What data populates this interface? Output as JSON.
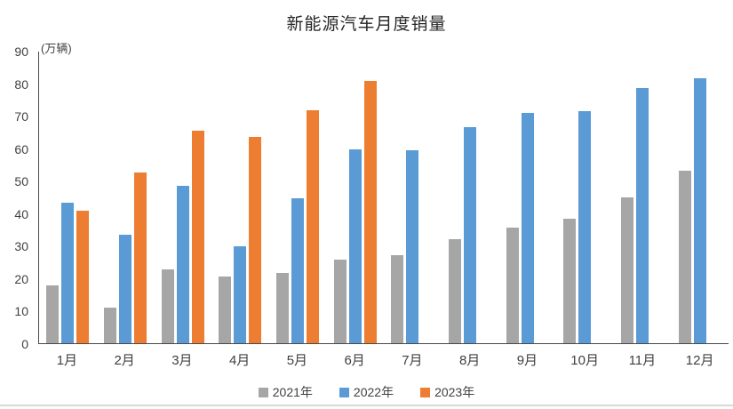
{
  "chart_data": {
    "type": "bar",
    "title": "新能源汽车月度销量",
    "ylabel": "(万辆)",
    "xlabel": "",
    "categories": [
      "1月",
      "2月",
      "3月",
      "4月",
      "5月",
      "6月",
      "7月",
      "8月",
      "9月",
      "10月",
      "11月",
      "12月"
    ],
    "series": [
      {
        "name": "2021年",
        "color": "#A6A6A6",
        "values": [
          17.9,
          11.0,
          22.6,
          20.6,
          21.7,
          25.6,
          27.1,
          32.1,
          35.7,
          38.3,
          45.0,
          53.1
        ]
      },
      {
        "name": "2022年",
        "color": "#5B9BD5",
        "values": [
          43.1,
          33.4,
          48.4,
          29.9,
          44.7,
          59.6,
          59.3,
          66.6,
          70.8,
          71.4,
          78.6,
          81.4
        ]
      },
      {
        "name": "2023年",
        "color": "#ED7D31",
        "values": [
          40.8,
          52.5,
          65.3,
          63.6,
          71.7,
          80.6,
          null,
          null,
          null,
          null,
          null,
          null
        ]
      }
    ],
    "ylim": [
      0,
      90
    ],
    "yticks": [
      0,
      10,
      20,
      30,
      40,
      50,
      60,
      70,
      80,
      90
    ],
    "grid": false,
    "legend_position": "bottom"
  },
  "ui": {
    "axis_color": "#4a4a4a",
    "text_color": "#404040",
    "bottom_rule_color": "#d9d9d9"
  }
}
